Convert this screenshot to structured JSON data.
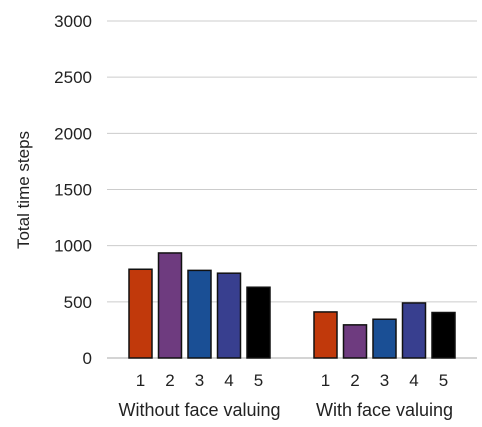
{
  "chart_data": {
    "type": "bar",
    "title": "",
    "xlabel": "",
    "ylabel": "Total time steps",
    "ylim": [
      0,
      3000
    ],
    "yticks": [
      0,
      500,
      1000,
      1500,
      2000,
      2500,
      3000
    ],
    "grid": true,
    "legend": "none",
    "groups": [
      {
        "name": "Without face valuing",
        "categories": [
          "1",
          "2",
          "3",
          "4",
          "5"
        ],
        "values": [
          790,
          935,
          780,
          755,
          630
        ]
      },
      {
        "name": "With face valuing",
        "categories": [
          "1",
          "2",
          "3",
          "4",
          "5"
        ],
        "values": [
          410,
          295,
          345,
          490,
          405
        ]
      }
    ],
    "bar_colors": [
      "#c1390b",
      "#6e3b7f",
      "#1a4f95",
      "#383f8f",
      "#000000"
    ]
  }
}
